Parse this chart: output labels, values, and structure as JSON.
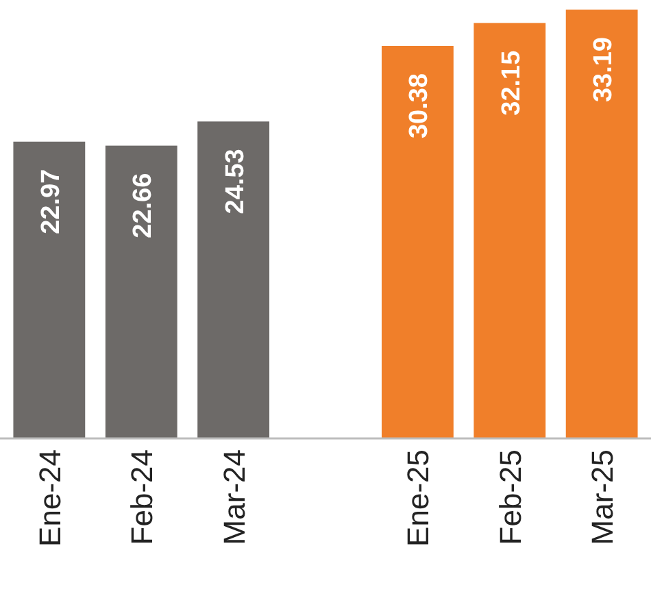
{
  "chart_data": {
    "type": "bar",
    "categories": [
      "Ene-24",
      "Feb-24",
      "Mar-24",
      null,
      "Ene-25",
      "Feb-25",
      "Mar-25"
    ],
    "values": [
      22.97,
      22.66,
      24.53,
      null,
      30.38,
      32.15,
      33.19
    ],
    "colors": [
      "#6d6a68",
      "#6d6a68",
      "#6d6a68",
      null,
      "#f07f2a",
      "#f07f2a",
      "#f07f2a"
    ],
    "data_labels": true
  }
}
